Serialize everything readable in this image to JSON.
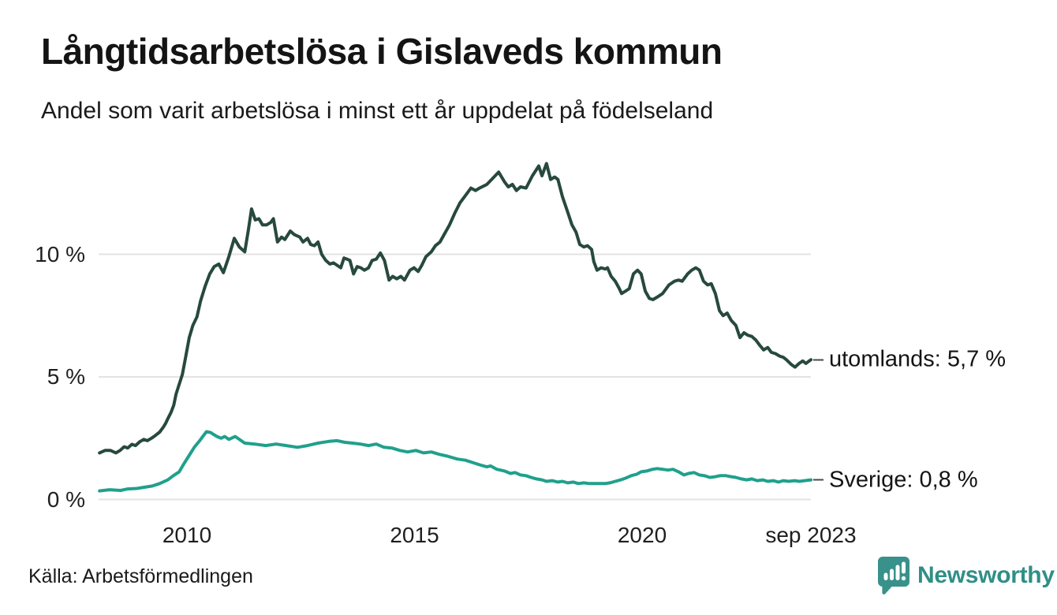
{
  "header": {
    "title": "Långtidsarbetslösa i Gislaveds kommun",
    "subtitle": "Andel som varit arbetslösa i minst ett år uppdelat på födelseland"
  },
  "footer": {
    "source": "Källa: Arbetsförmedlingen",
    "brand": "Newsworthy"
  },
  "colors": {
    "series_utomlands": "#27493e",
    "series_sverige": "#20a08c",
    "gridline": "#e3e3e3",
    "text": "#1a1a1a",
    "brand_teal": "#2f8f87",
    "logo_icon_teal": "#38918a"
  },
  "chart_data": {
    "type": "line",
    "title": "Långtidsarbetslösa i Gislaveds kommun",
    "subtitle": "Andel som varit arbetslösa i minst ett år uppdelat på födelseland",
    "xlabel": "",
    "ylabel": "",
    "x_range": [
      2008.08,
      2023.71
    ],
    "y_range": [
      0,
      14
    ],
    "grid": "horizontal",
    "legend_position": "right-end-labels",
    "x_axis": {
      "ticks": [
        {
          "value": 2010,
          "label": "2010"
        },
        {
          "value": 2015,
          "label": "2015"
        },
        {
          "value": 2020,
          "label": "2020"
        },
        {
          "value": 2023.708,
          "label": "sep 2023"
        }
      ]
    },
    "y_axis": {
      "unit": "%",
      "ticks": [
        {
          "value": 0,
          "label": "0 %"
        },
        {
          "value": 5,
          "label": "5 %"
        },
        {
          "value": 10,
          "label": "10 %"
        }
      ]
    },
    "series": [
      {
        "name": "utomlands",
        "label": "utomlands: 5,7 %",
        "last_value_label": "5,7 %",
        "color": "#27493e",
        "points": [
          [
            2008.08,
            1.9
          ],
          [
            2008.2,
            2.0
          ],
          [
            2008.32,
            2.0
          ],
          [
            2008.44,
            1.9
          ],
          [
            2008.53,
            2.0
          ],
          [
            2008.62,
            2.15
          ],
          [
            2008.7,
            2.1
          ],
          [
            2008.79,
            2.25
          ],
          [
            2008.87,
            2.2
          ],
          [
            2008.96,
            2.35
          ],
          [
            2009.05,
            2.45
          ],
          [
            2009.13,
            2.4
          ],
          [
            2009.22,
            2.5
          ],
          [
            2009.3,
            2.6
          ],
          [
            2009.4,
            2.75
          ],
          [
            2009.48,
            2.95
          ],
          [
            2009.53,
            3.1
          ],
          [
            2009.58,
            3.3
          ],
          [
            2009.65,
            3.55
          ],
          [
            2009.71,
            3.85
          ],
          [
            2009.76,
            4.3
          ],
          [
            2009.83,
            4.7
          ],
          [
            2009.9,
            5.1
          ],
          [
            2009.97,
            5.8
          ],
          [
            2010.05,
            6.6
          ],
          [
            2010.13,
            7.1
          ],
          [
            2010.22,
            7.45
          ],
          [
            2010.3,
            8.1
          ],
          [
            2010.4,
            8.7
          ],
          [
            2010.5,
            9.2
          ],
          [
            2010.6,
            9.5
          ],
          [
            2010.7,
            9.6
          ],
          [
            2010.8,
            9.25
          ],
          [
            2010.92,
            9.9
          ],
          [
            2011.04,
            10.65
          ],
          [
            2011.15,
            10.3
          ],
          [
            2011.27,
            10.1
          ],
          [
            2011.35,
            11.0
          ],
          [
            2011.42,
            11.85
          ],
          [
            2011.5,
            11.4
          ],
          [
            2011.58,
            11.45
          ],
          [
            2011.66,
            11.2
          ],
          [
            2011.75,
            11.2
          ],
          [
            2011.84,
            11.3
          ],
          [
            2011.9,
            11.45
          ],
          [
            2011.99,
            10.5
          ],
          [
            2012.08,
            10.7
          ],
          [
            2012.15,
            10.6
          ],
          [
            2012.27,
            10.95
          ],
          [
            2012.36,
            10.8
          ],
          [
            2012.48,
            10.7
          ],
          [
            2012.55,
            10.5
          ],
          [
            2012.65,
            10.65
          ],
          [
            2012.72,
            10.4
          ],
          [
            2012.8,
            10.35
          ],
          [
            2012.88,
            10.5
          ],
          [
            2012.96,
            10.0
          ],
          [
            2013.05,
            9.75
          ],
          [
            2013.14,
            9.6
          ],
          [
            2013.22,
            9.65
          ],
          [
            2013.3,
            9.55
          ],
          [
            2013.38,
            9.45
          ],
          [
            2013.45,
            9.85
          ],
          [
            2013.52,
            9.8
          ],
          [
            2013.58,
            9.75
          ],
          [
            2013.66,
            9.2
          ],
          [
            2013.74,
            9.5
          ],
          [
            2013.82,
            9.45
          ],
          [
            2013.9,
            9.35
          ],
          [
            2013.99,
            9.45
          ],
          [
            2014.07,
            9.75
          ],
          [
            2014.16,
            9.8
          ],
          [
            2014.25,
            10.05
          ],
          [
            2014.34,
            9.75
          ],
          [
            2014.44,
            8.95
          ],
          [
            2014.52,
            9.1
          ],
          [
            2014.61,
            9.0
          ],
          [
            2014.7,
            9.1
          ],
          [
            2014.78,
            8.95
          ],
          [
            2014.9,
            9.35
          ],
          [
            2014.99,
            9.45
          ],
          [
            2015.08,
            9.3
          ],
          [
            2015.16,
            9.55
          ],
          [
            2015.25,
            9.9
          ],
          [
            2015.37,
            10.1
          ],
          [
            2015.46,
            10.35
          ],
          [
            2015.56,
            10.5
          ],
          [
            2015.68,
            10.9
          ],
          [
            2015.77,
            11.2
          ],
          [
            2015.89,
            11.7
          ],
          [
            2016.0,
            12.1
          ],
          [
            2016.12,
            12.4
          ],
          [
            2016.24,
            12.7
          ],
          [
            2016.34,
            12.6
          ],
          [
            2016.43,
            12.7
          ],
          [
            2016.59,
            12.85
          ],
          [
            2016.72,
            13.1
          ],
          [
            2016.85,
            13.35
          ],
          [
            2016.98,
            12.95
          ],
          [
            2017.06,
            12.75
          ],
          [
            2017.15,
            12.85
          ],
          [
            2017.24,
            12.6
          ],
          [
            2017.33,
            12.75
          ],
          [
            2017.45,
            12.7
          ],
          [
            2017.59,
            13.2
          ],
          [
            2017.73,
            13.6
          ],
          [
            2017.8,
            13.2
          ],
          [
            2017.9,
            13.7
          ],
          [
            2017.99,
            13.05
          ],
          [
            2018.08,
            13.15
          ],
          [
            2018.15,
            13.05
          ],
          [
            2018.25,
            12.35
          ],
          [
            2018.37,
            11.7
          ],
          [
            2018.46,
            11.2
          ],
          [
            2018.55,
            10.9
          ],
          [
            2018.63,
            10.4
          ],
          [
            2018.72,
            10.3
          ],
          [
            2018.8,
            10.35
          ],
          [
            2018.89,
            10.2
          ],
          [
            2018.94,
            9.7
          ],
          [
            2019.01,
            9.35
          ],
          [
            2019.1,
            9.45
          ],
          [
            2019.19,
            9.4
          ],
          [
            2019.24,
            9.45
          ],
          [
            2019.32,
            9.1
          ],
          [
            2019.41,
            8.9
          ],
          [
            2019.5,
            8.6
          ],
          [
            2019.55,
            8.4
          ],
          [
            2019.64,
            8.5
          ],
          [
            2019.72,
            8.6
          ],
          [
            2019.81,
            9.2
          ],
          [
            2019.9,
            9.35
          ],
          [
            2019.98,
            9.2
          ],
          [
            2020.07,
            8.5
          ],
          [
            2020.16,
            8.2
          ],
          [
            2020.24,
            8.15
          ],
          [
            2020.33,
            8.25
          ],
          [
            2020.45,
            8.4
          ],
          [
            2020.59,
            8.75
          ],
          [
            2020.71,
            8.9
          ],
          [
            2020.8,
            8.95
          ],
          [
            2020.88,
            8.9
          ],
          [
            2021.0,
            9.2
          ],
          [
            2021.09,
            9.35
          ],
          [
            2021.18,
            9.45
          ],
          [
            2021.26,
            9.35
          ],
          [
            2021.35,
            8.9
          ],
          [
            2021.44,
            8.75
          ],
          [
            2021.52,
            8.8
          ],
          [
            2021.61,
            8.4
          ],
          [
            2021.7,
            7.7
          ],
          [
            2021.78,
            7.5
          ],
          [
            2021.87,
            7.6
          ],
          [
            2021.96,
            7.3
          ],
          [
            2022.06,
            7.1
          ],
          [
            2022.15,
            6.6
          ],
          [
            2022.24,
            6.8
          ],
          [
            2022.32,
            6.7
          ],
          [
            2022.41,
            6.65
          ],
          [
            2022.5,
            6.5
          ],
          [
            2022.58,
            6.3
          ],
          [
            2022.67,
            6.1
          ],
          [
            2022.76,
            6.2
          ],
          [
            2022.84,
            6.0
          ],
          [
            2022.93,
            5.95
          ],
          [
            2023.02,
            5.85
          ],
          [
            2023.1,
            5.8
          ],
          [
            2023.17,
            5.7
          ],
          [
            2023.28,
            5.5
          ],
          [
            2023.36,
            5.4
          ],
          [
            2023.45,
            5.55
          ],
          [
            2023.53,
            5.65
          ],
          [
            2023.6,
            5.55
          ],
          [
            2023.71,
            5.7
          ]
        ]
      },
      {
        "name": "Sverige",
        "label": "Sverige: 0,8 %",
        "last_value_label": "0,8 %",
        "color": "#20a08c",
        "points": [
          [
            2008.08,
            0.35
          ],
          [
            2008.3,
            0.4
          ],
          [
            2008.54,
            0.37
          ],
          [
            2008.7,
            0.43
          ],
          [
            2008.9,
            0.45
          ],
          [
            2009.06,
            0.5
          ],
          [
            2009.24,
            0.55
          ],
          [
            2009.4,
            0.65
          ],
          [
            2009.58,
            0.8
          ],
          [
            2009.7,
            0.97
          ],
          [
            2009.83,
            1.13
          ],
          [
            2009.93,
            1.45
          ],
          [
            2010.05,
            1.8
          ],
          [
            2010.17,
            2.15
          ],
          [
            2010.28,
            2.4
          ],
          [
            2010.36,
            2.6
          ],
          [
            2010.43,
            2.77
          ],
          [
            2010.52,
            2.73
          ],
          [
            2010.57,
            2.67
          ],
          [
            2010.66,
            2.57
          ],
          [
            2010.75,
            2.5
          ],
          [
            2010.83,
            2.57
          ],
          [
            2010.92,
            2.45
          ],
          [
            2011.06,
            2.57
          ],
          [
            2011.27,
            2.3
          ],
          [
            2011.49,
            2.26
          ],
          [
            2011.73,
            2.2
          ],
          [
            2011.96,
            2.26
          ],
          [
            2012.18,
            2.2
          ],
          [
            2012.43,
            2.13
          ],
          [
            2012.65,
            2.2
          ],
          [
            2012.88,
            2.3
          ],
          [
            2013.12,
            2.37
          ],
          [
            2013.3,
            2.4
          ],
          [
            2013.47,
            2.33
          ],
          [
            2013.64,
            2.3
          ],
          [
            2013.81,
            2.26
          ],
          [
            2013.99,
            2.2
          ],
          [
            2014.16,
            2.26
          ],
          [
            2014.33,
            2.13
          ],
          [
            2014.5,
            2.1
          ],
          [
            2014.68,
            2.0
          ],
          [
            2014.85,
            1.94
          ],
          [
            2015.03,
            2.0
          ],
          [
            2015.2,
            1.9
          ],
          [
            2015.37,
            1.94
          ],
          [
            2015.55,
            1.84
          ],
          [
            2015.72,
            1.77
          ],
          [
            2015.94,
            1.65
          ],
          [
            2016.12,
            1.6
          ],
          [
            2016.29,
            1.5
          ],
          [
            2016.46,
            1.4
          ],
          [
            2016.59,
            1.33
          ],
          [
            2016.67,
            1.37
          ],
          [
            2016.81,
            1.23
          ],
          [
            2016.98,
            1.16
          ],
          [
            2017.11,
            1.06
          ],
          [
            2017.21,
            1.1
          ],
          [
            2017.33,
            1.0
          ],
          [
            2017.45,
            0.97
          ],
          [
            2017.56,
            0.9
          ],
          [
            2017.68,
            0.84
          ],
          [
            2017.8,
            0.8
          ],
          [
            2017.9,
            0.74
          ],
          [
            2018.02,
            0.77
          ],
          [
            2018.15,
            0.71
          ],
          [
            2018.25,
            0.74
          ],
          [
            2018.37,
            0.68
          ],
          [
            2018.49,
            0.71
          ],
          [
            2018.6,
            0.65
          ],
          [
            2018.72,
            0.68
          ],
          [
            2018.84,
            0.65
          ],
          [
            2019.06,
            0.65
          ],
          [
            2019.19,
            0.65
          ],
          [
            2019.29,
            0.68
          ],
          [
            2019.41,
            0.74
          ],
          [
            2019.53,
            0.8
          ],
          [
            2019.64,
            0.87
          ],
          [
            2019.76,
            0.97
          ],
          [
            2019.88,
            1.03
          ],
          [
            2019.98,
            1.13
          ],
          [
            2020.1,
            1.16
          ],
          [
            2020.23,
            1.23
          ],
          [
            2020.33,
            1.26
          ],
          [
            2020.45,
            1.23
          ],
          [
            2020.57,
            1.2
          ],
          [
            2020.68,
            1.23
          ],
          [
            2020.8,
            1.13
          ],
          [
            2020.92,
            1.0
          ],
          [
            2021.02,
            1.06
          ],
          [
            2021.14,
            1.1
          ],
          [
            2021.26,
            1.0
          ],
          [
            2021.37,
            0.97
          ],
          [
            2021.49,
            0.9
          ],
          [
            2021.61,
            0.93
          ],
          [
            2021.71,
            0.97
          ],
          [
            2021.84,
            0.97
          ],
          [
            2021.96,
            0.93
          ],
          [
            2022.06,
            0.9
          ],
          [
            2022.18,
            0.84
          ],
          [
            2022.3,
            0.8
          ],
          [
            2022.41,
            0.84
          ],
          [
            2022.53,
            0.77
          ],
          [
            2022.65,
            0.8
          ],
          [
            2022.76,
            0.74
          ],
          [
            2022.88,
            0.77
          ],
          [
            2023.0,
            0.71
          ],
          [
            2023.1,
            0.77
          ],
          [
            2023.22,
            0.74
          ],
          [
            2023.35,
            0.77
          ],
          [
            2023.45,
            0.74
          ],
          [
            2023.57,
            0.77
          ],
          [
            2023.71,
            0.8
          ]
        ]
      }
    ]
  }
}
